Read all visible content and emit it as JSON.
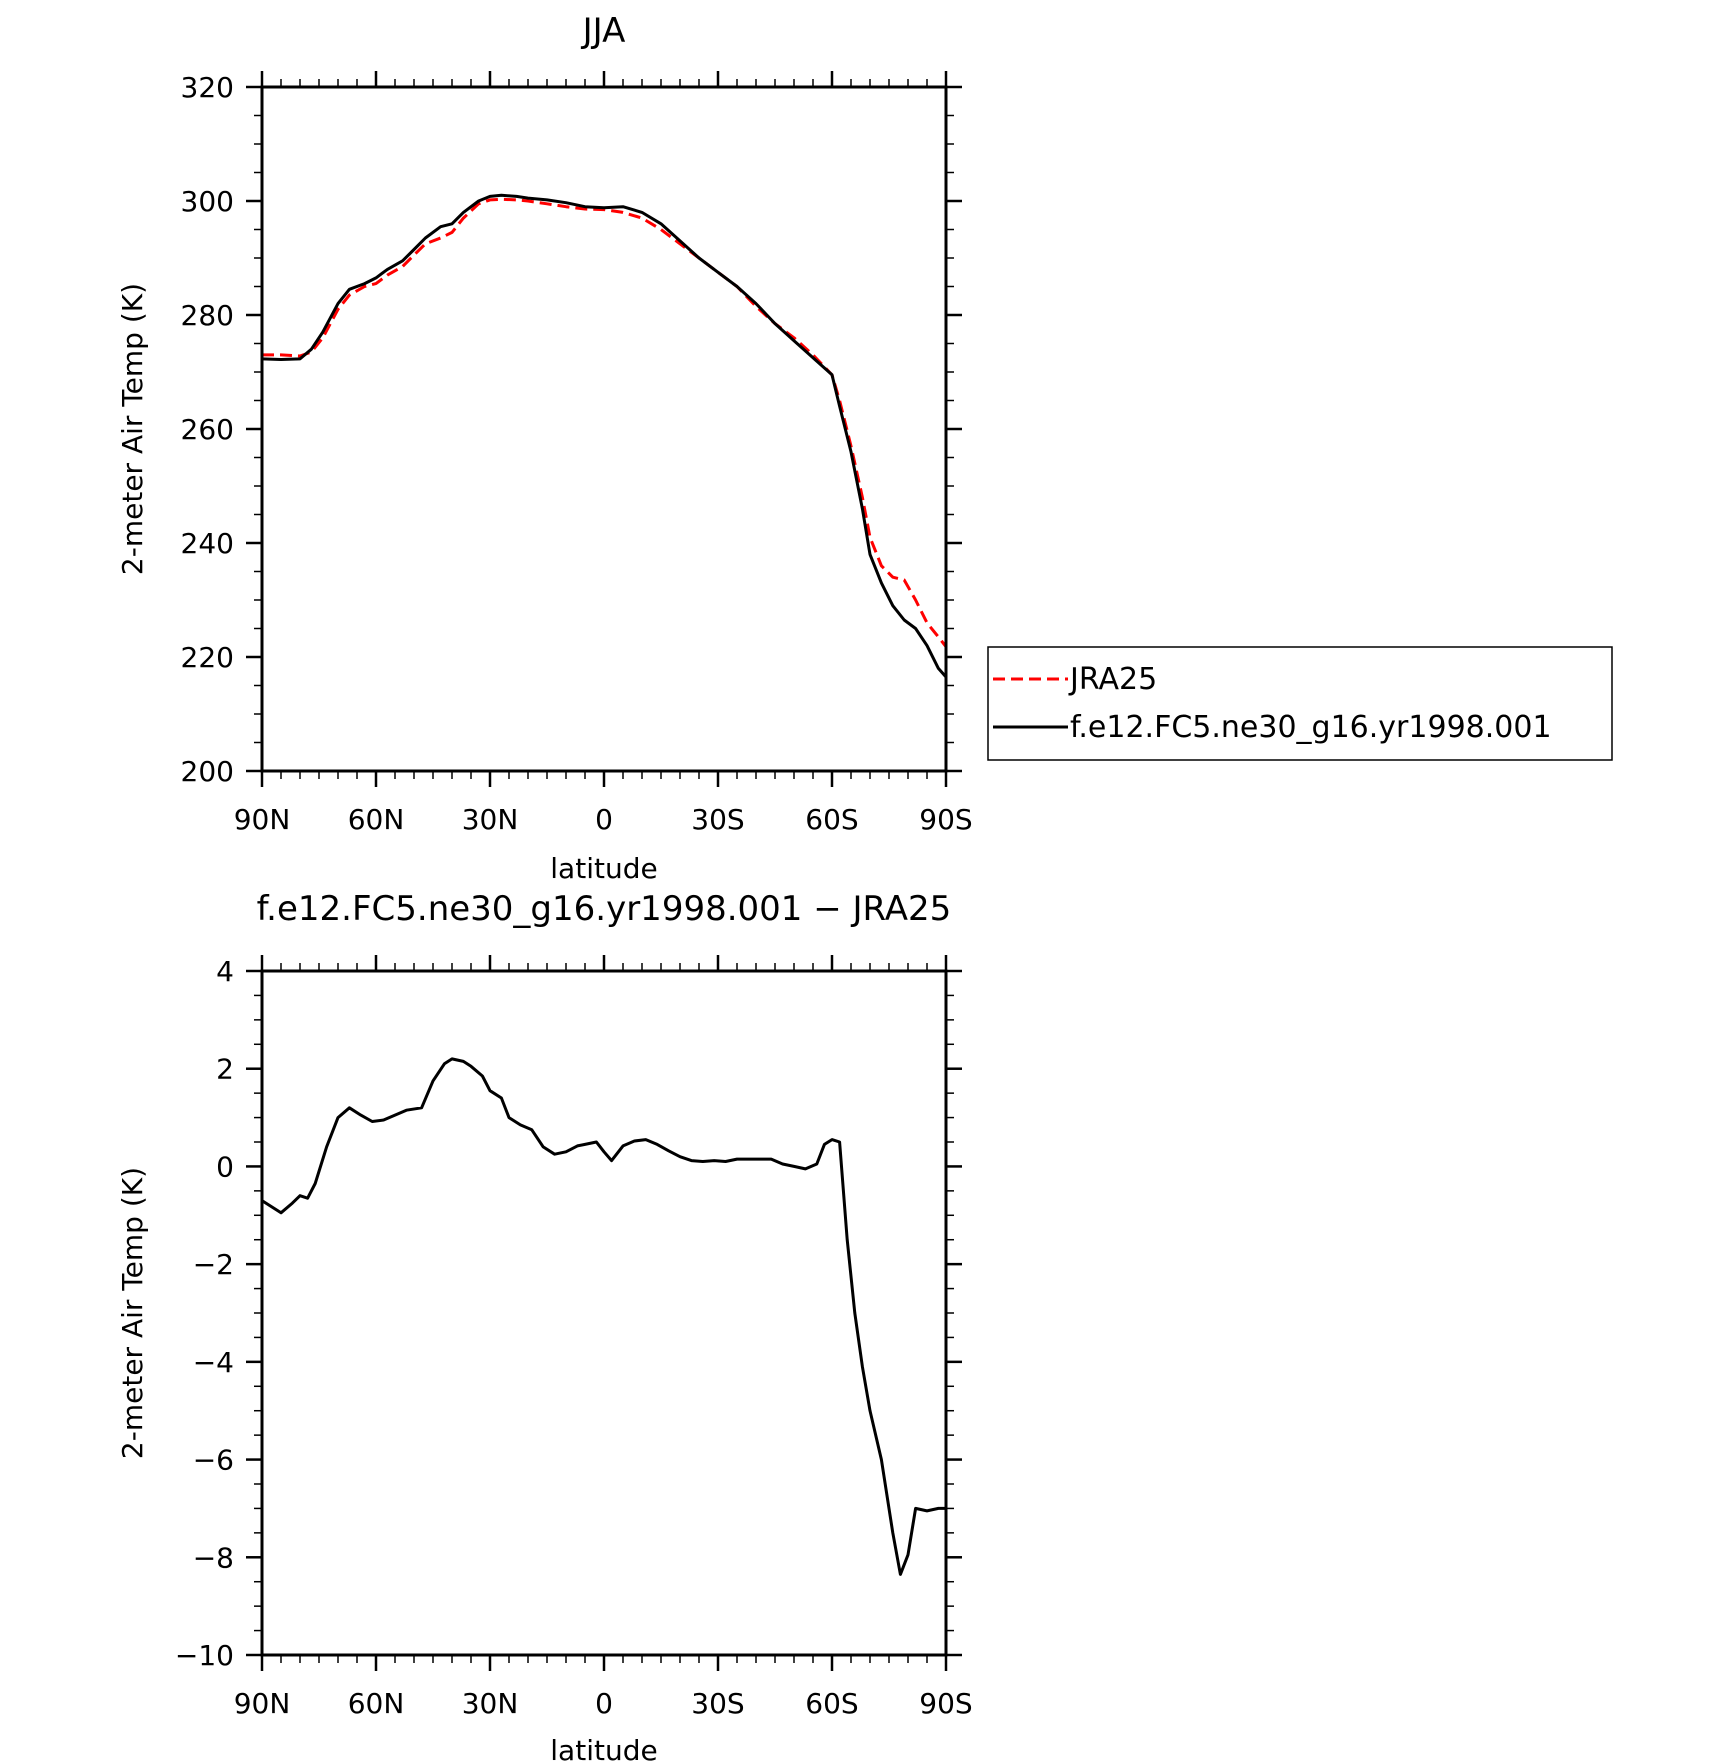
{
  "chart_data": [
    {
      "type": "line",
      "title": "JJA",
      "xlabel": "latitude",
      "ylabel": "2-meter Air Temp (K)",
      "xlim": [
        90,
        -90
      ],
      "ylim": [
        200,
        320
      ],
      "x_tick_values": [
        90,
        60,
        30,
        0,
        -30,
        -60,
        -90
      ],
      "x_tick_labels": [
        "90N",
        "60N",
        "30N",
        "0",
        "30S",
        "60S",
        "90S"
      ],
      "y_tick_values": [
        200,
        220,
        240,
        260,
        280,
        300,
        320
      ],
      "y_tick_labels": [
        "200",
        "220",
        "240",
        "260",
        "280",
        "300",
        "320"
      ],
      "legend_position": "right",
      "series": [
        {
          "name": "JRA25",
          "color": "#ff0000",
          "dash": "dashed",
          "x": [
            90,
            85,
            80,
            77,
            74,
            70,
            67,
            63,
            60,
            57,
            53,
            50,
            47,
            43,
            40,
            37,
            33,
            30,
            27,
            23,
            20,
            15,
            10,
            5,
            0,
            -5,
            -10,
            -15,
            -20,
            -25,
            -30,
            -35,
            -40,
            -45,
            -50,
            -55,
            -60,
            -62,
            -65,
            -68,
            -70,
            -73,
            -76,
            -79,
            -82,
            -85,
            -88,
            -90
          ],
          "y": [
            273,
            273,
            272.8,
            273.5,
            276,
            281,
            283.5,
            285,
            285.5,
            287,
            288.5,
            290.5,
            292.5,
            293.5,
            294.5,
            297,
            299.5,
            300.2,
            300.3,
            300.2,
            300,
            299.5,
            299,
            298.6,
            298.5,
            298,
            297,
            295,
            292.5,
            290,
            287.5,
            285,
            281.5,
            278.5,
            276,
            273,
            269.5,
            265,
            257,
            248,
            241,
            236,
            234,
            233.5,
            230,
            226,
            223.5,
            221.8
          ]
        },
        {
          "name": "f.e12.FC5.ne30_g16.yr1998.001",
          "color": "#000000",
          "dash": "solid",
          "x": [
            90,
            85,
            80,
            77,
            74,
            70,
            67,
            63,
            60,
            57,
            53,
            50,
            47,
            43,
            40,
            37,
            33,
            30,
            27,
            23,
            20,
            15,
            10,
            5,
            0,
            -5,
            -10,
            -15,
            -20,
            -25,
            -30,
            -35,
            -40,
            -45,
            -50,
            -55,
            -60,
            -62,
            -65,
            -68,
            -70,
            -73,
            -76,
            -79,
            -82,
            -85,
            -88,
            -90
          ],
          "y": [
            272.3,
            272.2,
            272.3,
            274,
            277,
            282,
            284.5,
            285.5,
            286.5,
            288,
            289.5,
            291.5,
            293.5,
            295.5,
            296,
            298,
            300,
            300.8,
            301,
            300.8,
            300.5,
            300.2,
            299.7,
            299,
            298.8,
            299,
            298,
            296,
            293,
            290,
            287.5,
            285,
            282,
            278.5,
            275.5,
            272.5,
            269.5,
            264,
            256,
            246,
            238,
            233,
            229,
            226.5,
            225,
            222,
            218,
            216.5
          ]
        }
      ]
    },
    {
      "type": "line",
      "title": "f.e12.FC5.ne30_g16.yr1998.001 − JRA25",
      "xlabel": "latitude",
      "ylabel": "2-meter Air Temp (K)",
      "xlim": [
        90,
        -90
      ],
      "ylim": [
        -10,
        4
      ],
      "x_tick_values": [
        90,
        60,
        30,
        0,
        -30,
        -60,
        -90
      ],
      "x_tick_labels": [
        "90N",
        "60N",
        "30N",
        "0",
        "30S",
        "60S",
        "90S"
      ],
      "y_tick_values": [
        -10,
        -8,
        -6,
        -4,
        -2,
        0,
        2,
        4
      ],
      "y_tick_labels": [
        "−10",
        "−8",
        "−6",
        "−4",
        "−2",
        "0",
        "2",
        "4"
      ],
      "series": [
        {
          "color": "#000000",
          "dash": "solid",
          "x": [
            90,
            85,
            82,
            80,
            78,
            76,
            73,
            70,
            67,
            64,
            61,
            58,
            55,
            52,
            48,
            45,
            42,
            40,
            37,
            35,
            32,
            30,
            27,
            25,
            22,
            19,
            16,
            13,
            10,
            7,
            5,
            2,
            0,
            -2,
            -5,
            -8,
            -11,
            -14,
            -17,
            -20,
            -23,
            -26,
            -29,
            -32,
            -35,
            -38,
            -41,
            -44,
            -47,
            -50,
            -53,
            -56,
            -58,
            -60,
            -62,
            -64,
            -66,
            -68,
            -70,
            -73,
            -76,
            -78,
            -80,
            -82,
            -85,
            -88,
            -90
          ],
          "y": [
            -0.7,
            -0.95,
            -0.75,
            -0.6,
            -0.65,
            -0.35,
            0.4,
            1.0,
            1.2,
            1.05,
            0.92,
            0.95,
            1.05,
            1.15,
            1.2,
            1.75,
            2.1,
            2.2,
            2.15,
            2.05,
            1.85,
            1.55,
            1.4,
            1.0,
            0.85,
            0.75,
            0.4,
            0.25,
            0.3,
            0.42,
            0.45,
            0.5,
            0.3,
            0.12,
            0.42,
            0.52,
            0.55,
            0.45,
            0.32,
            0.2,
            0.12,
            0.1,
            0.12,
            0.1,
            0.15,
            0.15,
            0.15,
            0.15,
            0.05,
            0.0,
            -0.05,
            0.05,
            0.45,
            0.55,
            0.5,
            -1.5,
            -3.0,
            -4.1,
            -5.0,
            -6.0,
            -7.5,
            -8.35,
            -7.95,
            -7.0,
            -7.05,
            -7.0,
            -7.0
          ]
        }
      ]
    }
  ]
}
